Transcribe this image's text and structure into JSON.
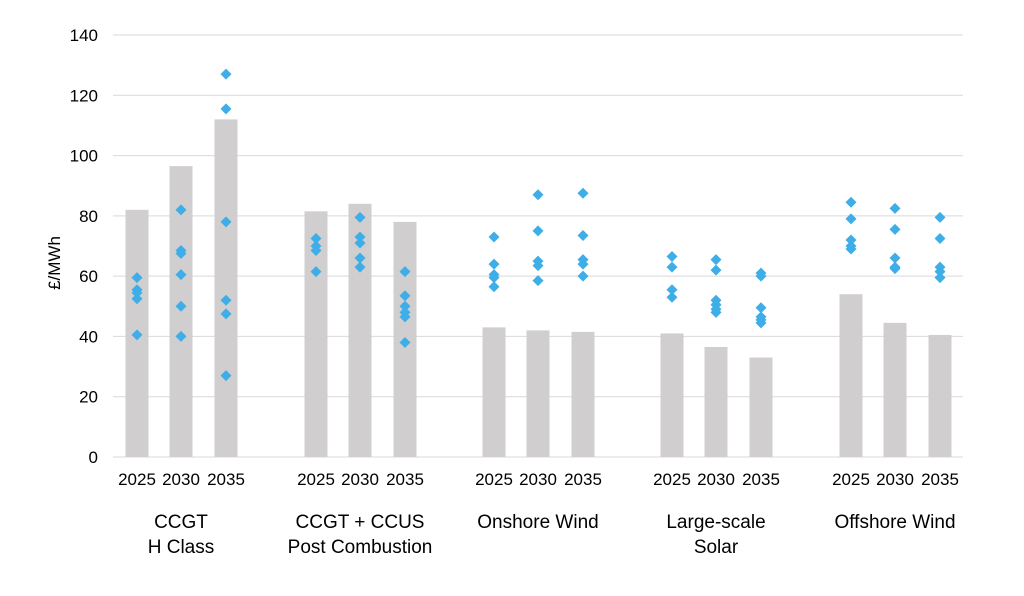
{
  "chart_data": {
    "type": "bar",
    "ylabel": "£/MWh",
    "ylim": [
      0,
      140
    ],
    "yticks": [
      0,
      20,
      40,
      60,
      80,
      100,
      120,
      140
    ],
    "grid": true,
    "bar_color": "#d0cece",
    "marker_color": "#3eaee8",
    "groups": [
      {
        "name_lines": [
          "CCGT",
          "H Class"
        ],
        "years": [
          "2025",
          "2030",
          "2035"
        ],
        "bars": [
          82,
          96.5,
          112
        ],
        "points": [
          [
            59.5,
            55.5,
            54.5,
            52.5,
            40.5
          ],
          [
            82,
            68.5,
            67.5,
            60.5,
            50,
            40
          ],
          [
            127,
            115.5,
            78,
            52,
            47.5,
            27
          ]
        ]
      },
      {
        "name_lines": [
          "CCGT + CCUS",
          "Post Combustion"
        ],
        "years": [
          "2025",
          "2030",
          "2035"
        ],
        "bars": [
          81.5,
          84,
          78
        ],
        "points": [
          [
            72.5,
            70,
            68.5,
            61.5
          ],
          [
            79.5,
            73,
            71,
            66,
            63
          ],
          [
            61.5,
            53.5,
            50,
            48,
            46.5,
            38
          ]
        ]
      },
      {
        "name_lines": [
          "Onshore Wind"
        ],
        "years": [
          "2025",
          "2030",
          "2035"
        ],
        "bars": [
          43,
          42,
          41.5
        ],
        "points": [
          [
            73,
            64,
            60.5,
            59.5,
            56.5
          ],
          [
            87,
            75,
            65,
            63.5,
            58.5
          ],
          [
            87.5,
            73.5,
            65.5,
            64,
            60
          ]
        ]
      },
      {
        "name_lines": [
          "Large-scale",
          "Solar"
        ],
        "years": [
          "2025",
          "2030",
          "2035"
        ],
        "bars": [
          41,
          36.5,
          33
        ],
        "points": [
          [
            66.5,
            63,
            55.5,
            53
          ],
          [
            65.5,
            62,
            52,
            50.5,
            49,
            48
          ],
          [
            61,
            60,
            49.5,
            46.5,
            45.5,
            44.5
          ]
        ]
      },
      {
        "name_lines": [
          "Offshore Wind"
        ],
        "years": [
          "2025",
          "2030",
          "2035"
        ],
        "bars": [
          54,
          44.5,
          40.5
        ],
        "points": [
          [
            84.5,
            79,
            72,
            70,
            69
          ],
          [
            82.5,
            75.5,
            66,
            63,
            62.5
          ],
          [
            79.5,
            72.5,
            63,
            61.5,
            59.5
          ]
        ]
      }
    ]
  }
}
